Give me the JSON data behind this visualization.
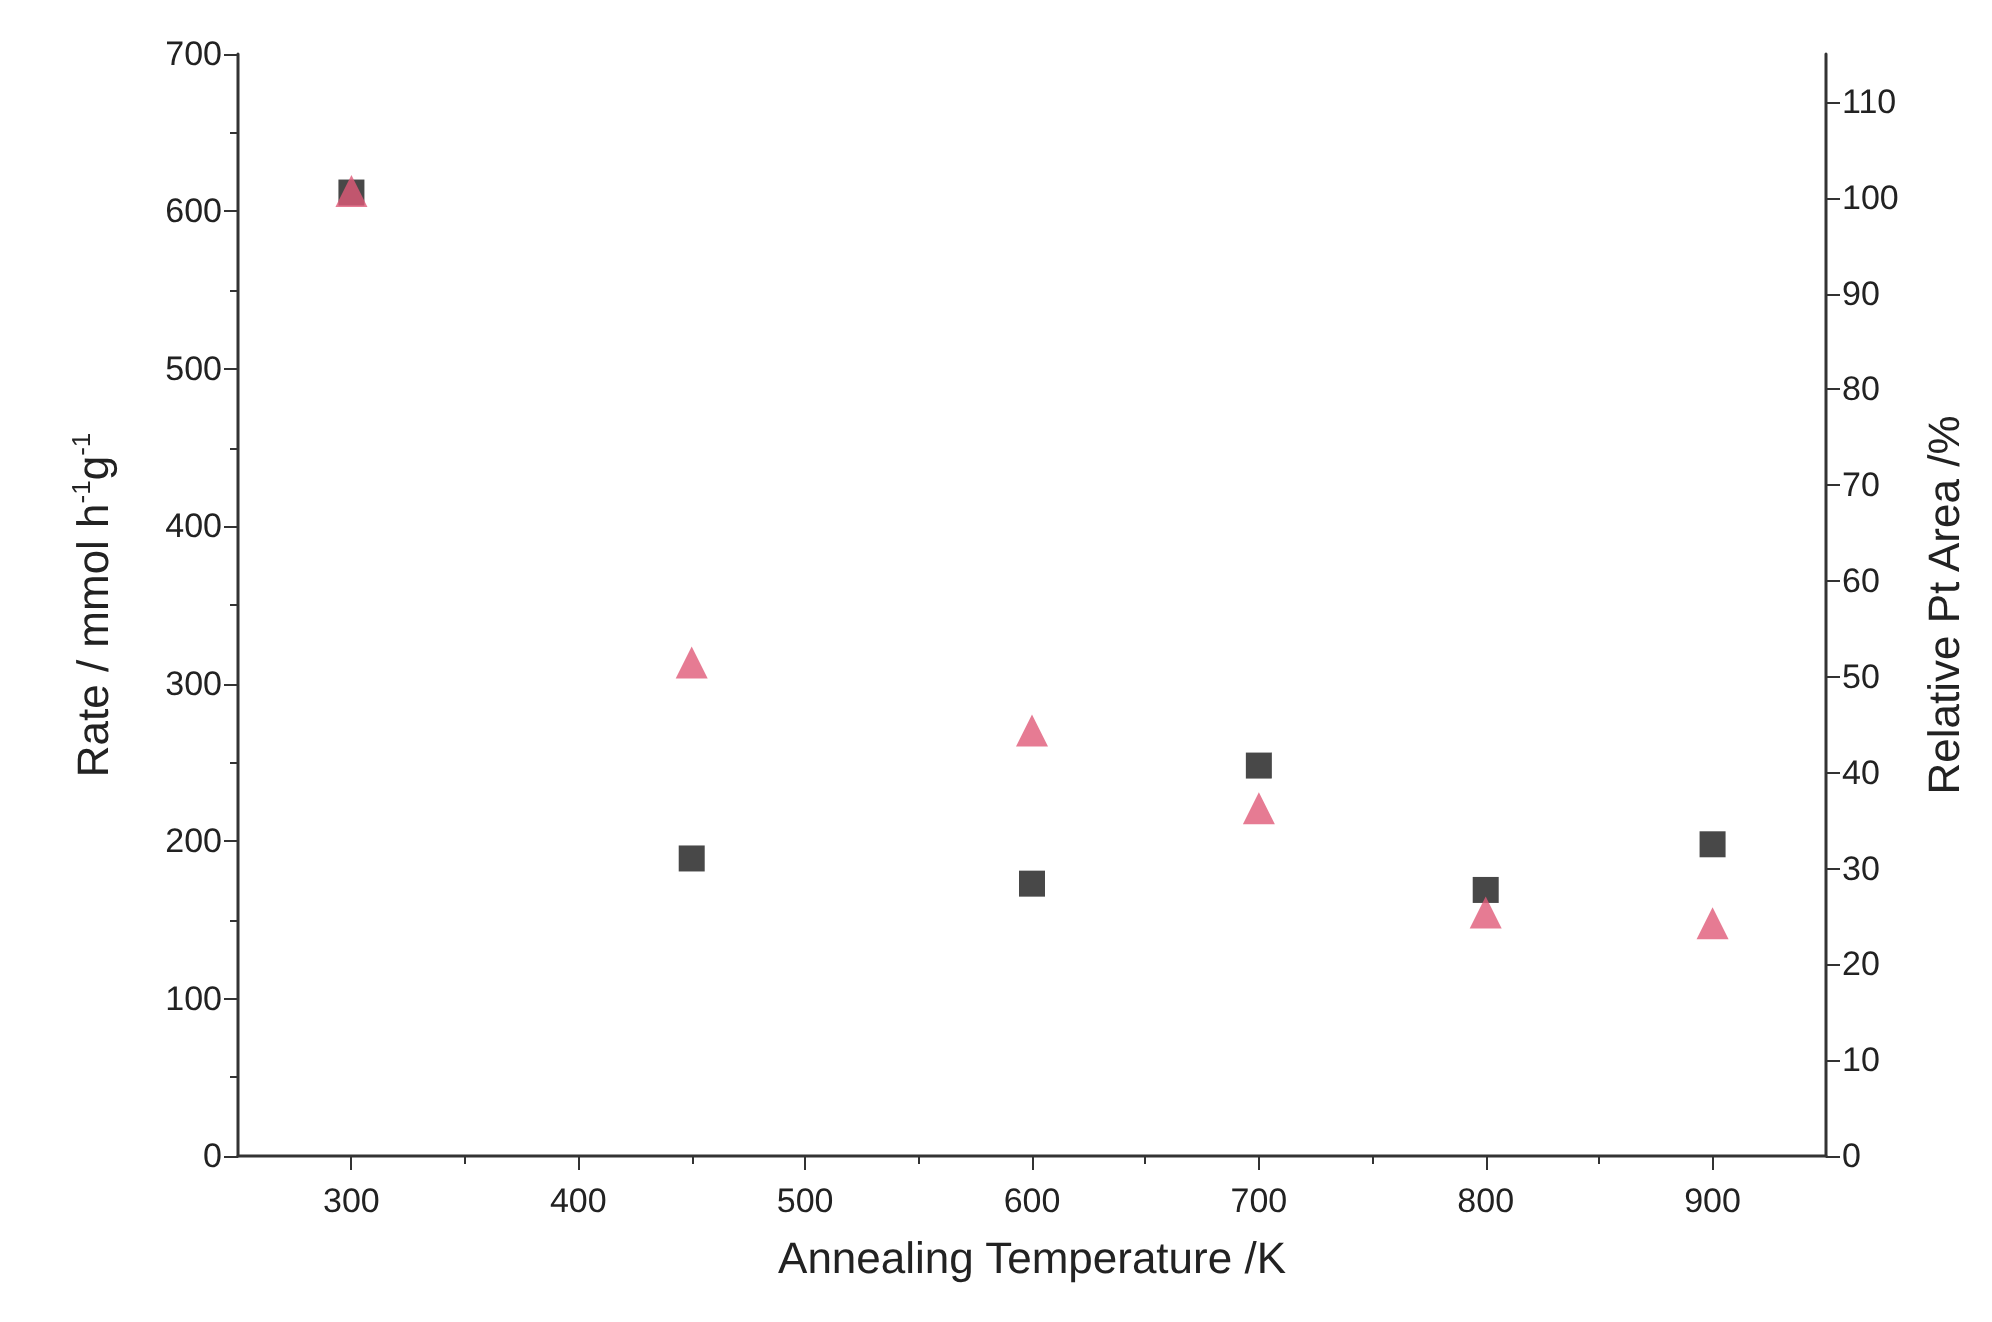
{
  "chart_data": {
    "type": "scatter",
    "xlabel": "Annealing Temperature /K",
    "ylabel": "Rate / mmol h$^{-1}$g$^{-1}$",
    "y2label": "Relative Pt Area /%",
    "x": [
      300,
      450,
      600,
      700,
      800,
      900
    ],
    "series": [
      {
        "color": "#1a1a1a",
        "marker": "square",
        "values": [
          612,
          189,
          173,
          248,
          169,
          198
        ]
      },
      {
        "color": "#e05a78",
        "marker": "triangle",
        "axis": "y2",
        "values": [
          100.7,
          51.5,
          44.4,
          36.3,
          25.4,
          24.3
        ]
      }
    ],
    "xlim": [
      250,
      950
    ],
    "xticks": [
      300,
      400,
      500,
      600,
      700,
      800,
      900
    ],
    "ylim": [
      0,
      700
    ],
    "yticks": [
      0,
      100,
      200,
      300,
      400,
      500,
      600,
      700
    ],
    "y2lim": [
      0,
      115
    ],
    "y2ticks": [
      0,
      10,
      20,
      30,
      40,
      50,
      60,
      70,
      80,
      90,
      100,
      110
    ],
    "grid": false
  }
}
